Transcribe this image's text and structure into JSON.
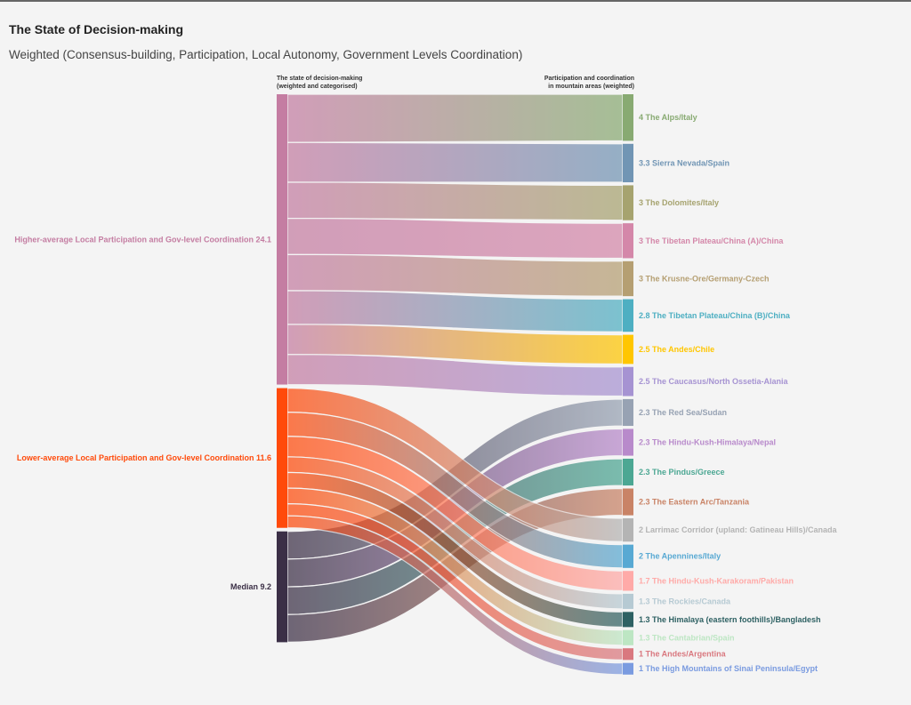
{
  "title": "The State of Decision-making",
  "subtitle": "Weighted (Consensus-building, Participation, Local Autonomy, Government Levels Coordination)",
  "left_header": [
    "The state of decision-making",
    "(weighted and categorised)"
  ],
  "right_header": [
    "Participation and coordination",
    "in mountain areas (weighted)"
  ],
  "chart_data": {
    "type": "sankey",
    "sources": [
      {
        "name": "Higher-average Local Participation and Gov-level Coordination",
        "value": 24.1,
        "label": "Higher-average Local Participation and Gov-level Coordination 24.1",
        "color": "#c47da2"
      },
      {
        "name": "Lower-average Local Participation and Gov-level Coordination",
        "value": 11.6,
        "label": "Lower-average Local Participation and Gov-level Coordination 11.6",
        "color": "#ff4a0a"
      },
      {
        "name": "Median",
        "value": 9.2,
        "label": "Median 9.2",
        "color": "#3b2f46"
      }
    ],
    "targets": [
      {
        "label": "4 The Alps/Italy",
        "value": 4,
        "source": 0,
        "color": "#88aa72"
      },
      {
        "label": "3.3 Sierra Nevada/Spain",
        "value": 3.3,
        "source": 0,
        "color": "#7195b4"
      },
      {
        "label": "3 The Dolomites/Italy",
        "value": 3,
        "source": 0,
        "color": "#a6a36f"
      },
      {
        "label": "3 The Tibetan Plateau/China (A)/China",
        "value": 3,
        "source": 0,
        "color": "#d487a9"
      },
      {
        "label": "3 The Krusne-Ore/Germany-Czech",
        "value": 3,
        "source": 0,
        "color": "#b59f72"
      },
      {
        "label": "2.8 The Tibetan Plateau/China (B)/China",
        "value": 2.8,
        "source": 0,
        "color": "#4eafc2"
      },
      {
        "label": "2.5 The Andes/Chile",
        "value": 2.5,
        "source": 0,
        "color": "#ffc600"
      },
      {
        "label": "2.5 The Caucasus/North Ossetia-Alania",
        "value": 2.5,
        "source": 0,
        "color": "#a693d2"
      },
      {
        "label": "2.3 The Red Sea/Sudan",
        "value": 2.3,
        "source": 2,
        "color": "#97a2b3"
      },
      {
        "label": "2.3 The Hindu-Kush-Himalaya/Nepal",
        "value": 2.3,
        "source": 2,
        "color": "#b88acb"
      },
      {
        "label": "2.3 The Pindus/Greece",
        "value": 2.3,
        "source": 2,
        "color": "#4ca793"
      },
      {
        "label": "2.3 The Eastern Arc/Tanzania",
        "value": 2.3,
        "source": 2,
        "color": "#c98366"
      },
      {
        "label": "2 Larrimac Corridor (upland: Gatineau Hills)/Canada",
        "value": 2,
        "source": 1,
        "color": "#b4b4b4"
      },
      {
        "label": "2 The Apennines/Italy",
        "value": 2,
        "source": 1,
        "color": "#58a9d3"
      },
      {
        "label": "1.7 The Hindu-Kush-Karakoram/Pakistan",
        "value": 1.7,
        "source": 1,
        "color": "#ffaaa8"
      },
      {
        "label": "1.3 The Rockies/Canada",
        "value": 1.3,
        "source": 1,
        "color": "#b6cad3"
      },
      {
        "label": "1.3 The Himalaya (eastern foothills)/Bangladesh",
        "value": 1.3,
        "source": 1,
        "color": "#2e6163"
      },
      {
        "label": "1.3 The Cantabrian/Spain",
        "value": 1.3,
        "source": 1,
        "color": "#bde6c3"
      },
      {
        "label": "1 The Andes/Argentina",
        "value": 1,
        "source": 1,
        "color": "#d9787f"
      },
      {
        "label": "1 The High Mountains of Sinai Peninsula/Egypt",
        "value": 1,
        "source": 1,
        "color": "#7a9be0"
      }
    ]
  }
}
